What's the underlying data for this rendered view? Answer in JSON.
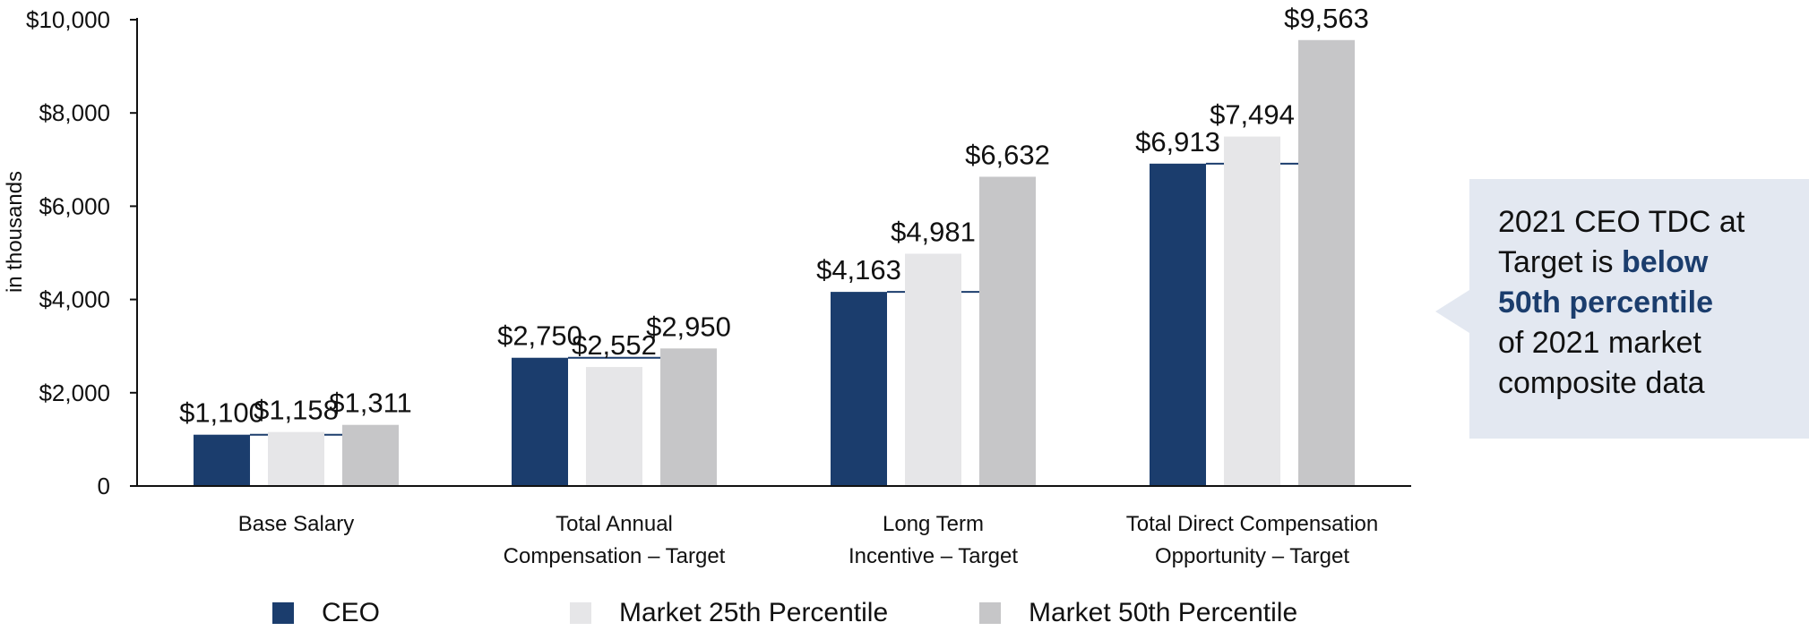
{
  "chart_data": {
    "type": "bar",
    "ylabel": "in thousands",
    "ylim": [
      0,
      10000
    ],
    "yticks": [
      {
        "value": 0,
        "label": "0"
      },
      {
        "value": 2000,
        "label": "$2,000"
      },
      {
        "value": 4000,
        "label": "$4,000"
      },
      {
        "value": 6000,
        "label": "$6,000"
      },
      {
        "value": 8000,
        "label": "$8,000"
      },
      {
        "value": 10000,
        "label": "$10,000"
      }
    ],
    "categories": [
      [
        "Base Salary"
      ],
      [
        "Total Annual",
        "Compensation – Target"
      ],
      [
        "Long Term",
        "Incentive – Target"
      ],
      [
        "Total Direct Compensation",
        "Opportunity – Target"
      ]
    ],
    "series": [
      {
        "name": "CEO",
        "color": "#1b3d6d",
        "values": [
          1100,
          2750,
          4163,
          6913
        ],
        "labels": [
          "$1,100",
          "$2,750",
          "$4,163",
          "$6,913"
        ]
      },
      {
        "name": "Market 25th Percentile",
        "color": "#e6e6e8",
        "values": [
          1158,
          2552,
          4981,
          7494
        ],
        "labels": [
          "$1,158",
          "$2,552",
          "$4,981",
          "$7,494"
        ]
      },
      {
        "name": "Market 50th Percentile",
        "color": "#c6c6c8",
        "values": [
          1311,
          2950,
          6632,
          9563
        ],
        "labels": [
          "$1,311",
          "$2,950",
          "$6,632",
          "$9,563"
        ]
      }
    ],
    "ceo_reference_lines": true,
    "grid": false,
    "legend_position": "bottom"
  },
  "callout": {
    "line1": "2021 CEO TDC at",
    "line2_prefix": "Target is ",
    "line2_em": "below",
    "line3_em": "50th percentile",
    "line4": "of 2021 market",
    "line5": "composite data"
  },
  "colors": {
    "accent": "#1b3d6d",
    "callout_bg": "#e3e8f1"
  }
}
